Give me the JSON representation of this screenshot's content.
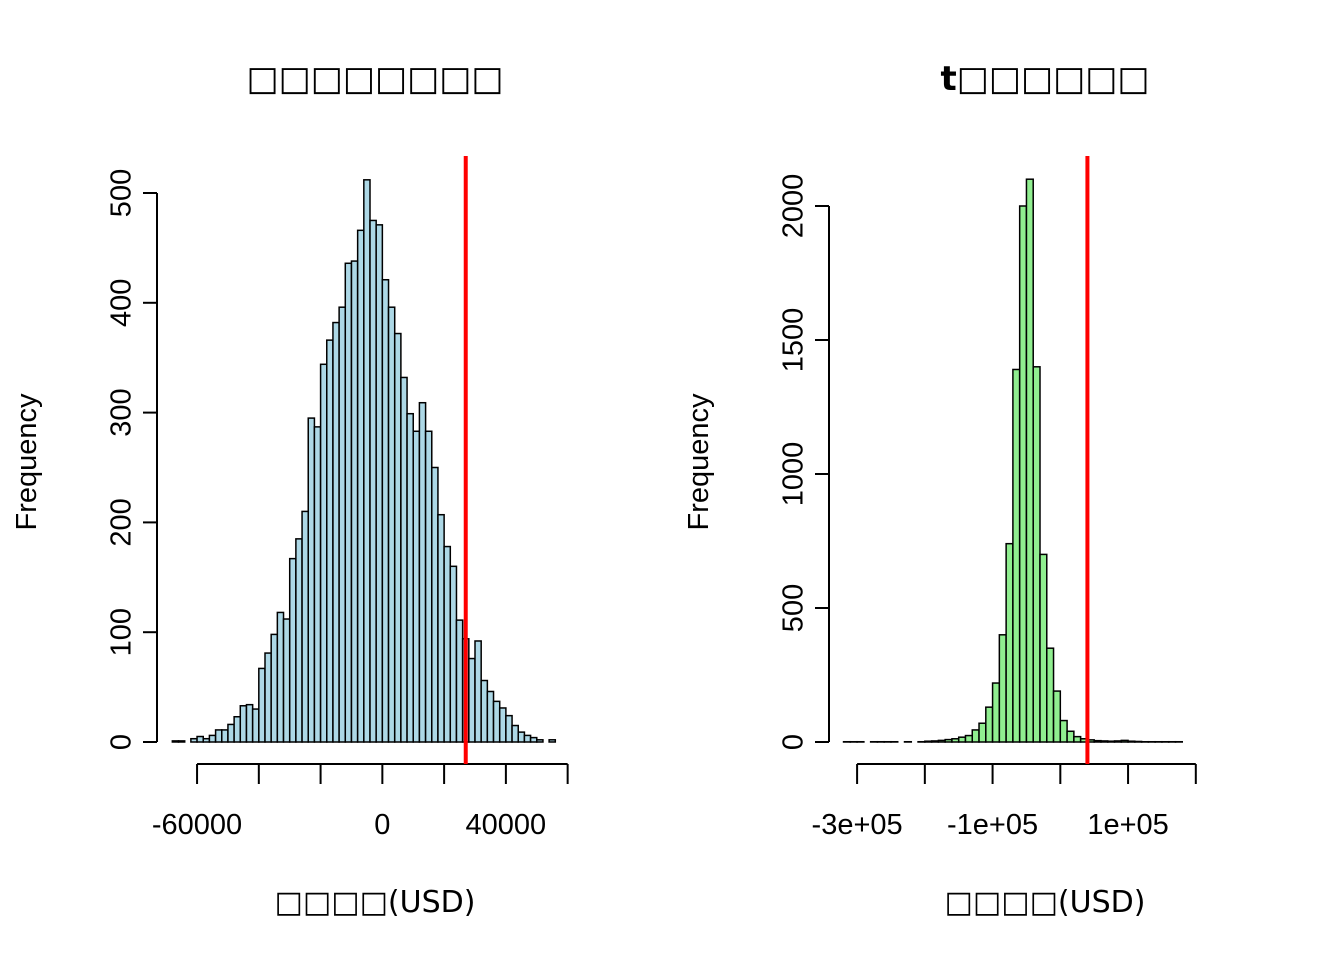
{
  "chart_data": [
    {
      "type": "bar",
      "panel": "left",
      "title": "□□□□□□□□",
      "xlabel": "□□□□(USD)",
      "ylabel": "Frequency",
      "bar_color": "#add8e6",
      "xlim": [
        -72000,
        64000
      ],
      "ylim": [
        0,
        500
      ],
      "x_ticks": [
        -60000,
        -40000,
        -20000,
        0,
        20000,
        40000,
        60000
      ],
      "x_tick_labels": [
        "-60000",
        "",
        "",
        "0",
        "",
        "40000",
        ""
      ],
      "y_ticks": [
        0,
        100,
        200,
        300,
        400,
        500
      ],
      "y_tick_labels": [
        "0",
        "100",
        "200",
        "300",
        "400",
        "500"
      ],
      "bin_start": -68000,
      "bin_width": 2000,
      "values": [
        1,
        1,
        0,
        3,
        5,
        3,
        6,
        11,
        11,
        16,
        23,
        33,
        34,
        30,
        67,
        81,
        98,
        118,
        112,
        167,
        185,
        210,
        295,
        287,
        344,
        366,
        382,
        396,
        436,
        438,
        466,
        512,
        475,
        471,
        421,
        396,
        372,
        332,
        299,
        283,
        309,
        283,
        250,
        207,
        178,
        160,
        111,
        94,
        76,
        92,
        56,
        46,
        37,
        31,
        24,
        15,
        9,
        6,
        4,
        2,
        0,
        2
      ],
      "vline": 27000,
      "vline_color": "#ff0000"
    },
    {
      "type": "bar",
      "panel": "right",
      "title": "t□□□□□□",
      "xlabel": "□□□□(USD)",
      "ylabel": "Frequency",
      "bar_color": "#90ee90",
      "xlim": [
        -340000,
        280000
      ],
      "ylim": [
        0,
        2000
      ],
      "x_ticks": [
        -300000,
        -200000,
        -100000,
        0,
        100000,
        200000
      ],
      "x_tick_labels": [
        "-3e+05",
        "",
        "-1e+05",
        "",
        "1e+05",
        ""
      ],
      "y_ticks": [
        0,
        500,
        1000,
        1500,
        2000
      ],
      "y_tick_labels": [
        "0",
        "500",
        "1000",
        "1500",
        "2000"
      ],
      "bin_start": -320000,
      "bin_width": 10000,
      "values": [
        1,
        1,
        1,
        0,
        1,
        1,
        1,
        1,
        0,
        1,
        0,
        1,
        3,
        4,
        6,
        9,
        12,
        18,
        24,
        45,
        70,
        130,
        220,
        400,
        740,
        1390,
        2000,
        2100,
        1400,
        700,
        350,
        190,
        80,
        40,
        20,
        12,
        8,
        5,
        4,
        3,
        4,
        6,
        3,
        2,
        1,
        1,
        1,
        1,
        1,
        1
      ],
      "vline": 40000,
      "vline_color": "#ff0000"
    }
  ]
}
